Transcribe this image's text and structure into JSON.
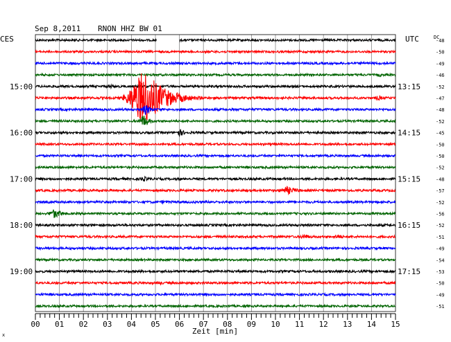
{
  "header": {
    "date": "Sep 8,2011",
    "station": "RNON HHZ BW 01",
    "left_timezone": "CES",
    "right_timezone": "UTC",
    "dc_label": "DC"
  },
  "chart_data": {
    "type": "line",
    "title": "Sep 8,2011   RNON HHZ BW 01",
    "xlabel": "Zeit [min]",
    "ylabel": "",
    "xlim": [
      0,
      15
    ],
    "x_ticks": [
      "00",
      "01",
      "02",
      "03",
      "04",
      "05",
      "06",
      "07",
      "08",
      "09",
      "10",
      "11",
      "12",
      "13",
      "14",
      "15"
    ],
    "grid": true,
    "trace_colors": [
      "#000000",
      "#ff0000",
      "#0000ff",
      "#006400"
    ],
    "left_time_labels": [
      {
        "trace": 4,
        "label": "15:00"
      },
      {
        "trace": 8,
        "label": "16:00"
      },
      {
        "trace": 12,
        "label": "17:00"
      },
      {
        "trace": 16,
        "label": "18:00"
      },
      {
        "trace": 20,
        "label": "19:00"
      }
    ],
    "right_time_labels": [
      {
        "trace": 4,
        "label": "13:15"
      },
      {
        "trace": 8,
        "label": "14:15"
      },
      {
        "trace": 12,
        "label": "15:15"
      },
      {
        "trace": 16,
        "label": "16:15"
      },
      {
        "trace": 20,
        "label": "17:15"
      }
    ],
    "dc_offsets": [
      "-48",
      "-50",
      "-49",
      "-46",
      "-52",
      "-47",
      "-48",
      "-52",
      "-45",
      "-50",
      "-50",
      "-52",
      "-48",
      "-57",
      "-52",
      "-56",
      "-52",
      "-51",
      "-49",
      "-54",
      "-53",
      "-50",
      "-49",
      "-51"
    ],
    "traces": [
      {
        "index": 0,
        "amplitude": 1.5,
        "gap": [
          5.05,
          6.0
        ],
        "events": []
      },
      {
        "index": 1,
        "amplitude": 1.5,
        "events": []
      },
      {
        "index": 2,
        "amplitude": 1.6,
        "events": []
      },
      {
        "index": 3,
        "amplitude": 1.5,
        "events": [
          {
            "t": 14.3,
            "amp": 3,
            "dur": 0.4
          }
        ]
      },
      {
        "index": 4,
        "amplitude": 1.6,
        "events": [
          {
            "t": 3.1,
            "amp": 4,
            "dur": 0.3
          }
        ]
      },
      {
        "index": 5,
        "amplitude": 1.6,
        "events": [
          {
            "t": 4.5,
            "amp": 45,
            "dur": 1.3,
            "start": 3.3
          },
          {
            "t": 14.3,
            "amp": 4,
            "dur": 0.5
          }
        ]
      },
      {
        "index": 6,
        "amplitude": 1.6,
        "events": [
          {
            "t": 4.6,
            "amp": 8,
            "dur": 0.4
          }
        ]
      },
      {
        "index": 7,
        "amplitude": 1.5,
        "events": [
          {
            "t": 4.5,
            "amp": 10,
            "dur": 0.4
          }
        ]
      },
      {
        "index": 8,
        "amplitude": 1.6,
        "events": [
          {
            "t": 6.0,
            "amp": 6,
            "dur": 0.4
          }
        ]
      },
      {
        "index": 9,
        "amplitude": 1.5,
        "events": []
      },
      {
        "index": 10,
        "amplitude": 1.5,
        "events": []
      },
      {
        "index": 11,
        "amplitude": 1.6,
        "events": []
      },
      {
        "index": 12,
        "amplitude": 1.6,
        "events": [
          {
            "t": 4.5,
            "amp": 4,
            "dur": 0.5
          }
        ]
      },
      {
        "index": 13,
        "amplitude": 1.6,
        "events": [
          {
            "t": 10.5,
            "amp": 6,
            "dur": 0.8
          }
        ]
      },
      {
        "index": 14,
        "amplitude": 1.6,
        "events": [
          {
            "t": 5.3,
            "amp": 3,
            "dur": 0.3
          }
        ]
      },
      {
        "index": 15,
        "amplitude": 1.5,
        "events": [
          {
            "t": 0.8,
            "amp": 7,
            "dur": 0.6
          }
        ]
      },
      {
        "index": 16,
        "amplitude": 1.6,
        "events": [
          {
            "t": 11.0,
            "amp": 2,
            "dur": 0.3
          }
        ]
      },
      {
        "index": 17,
        "amplitude": 1.6,
        "events": [
          {
            "t": 11.2,
            "amp": 4,
            "dur": 0.6
          },
          {
            "t": 12.6,
            "amp": 4,
            "dur": 0.5
          }
        ]
      },
      {
        "index": 18,
        "amplitude": 1.6,
        "events": []
      },
      {
        "index": 19,
        "amplitude": 1.5,
        "events": []
      },
      {
        "index": 20,
        "amplitude": 1.6,
        "events": []
      },
      {
        "index": 21,
        "amplitude": 1.6,
        "events": [
          {
            "t": 5.2,
            "amp": 3,
            "dur": 0.3
          }
        ]
      },
      {
        "index": 22,
        "amplitude": 1.6,
        "events": []
      },
      {
        "index": 23,
        "amplitude": 1.5,
        "events": []
      }
    ]
  }
}
